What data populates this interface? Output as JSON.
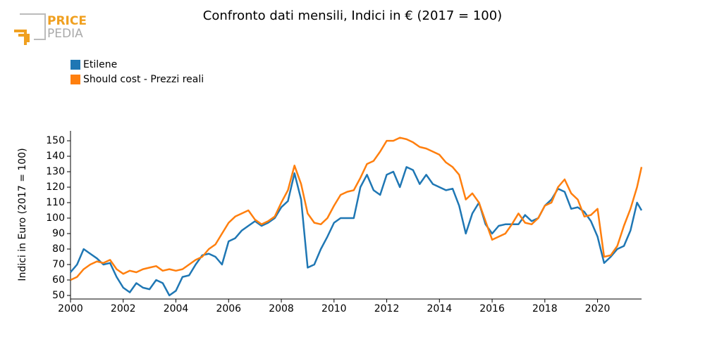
{
  "logo": {
    "line1": "PRICE",
    "line2": "PEDIA"
  },
  "chart_data": {
    "type": "line",
    "title": "Confronto dati mensili, Indici in € (2017 = 100)",
    "y_label": "Indici in Euro (2017 = 100)",
    "legend": "top-left",
    "grid": false,
    "x": [
      2000,
      2000.25,
      2000.5,
      2000.75,
      2001,
      2001.25,
      2001.5,
      2001.75,
      2002,
      2002.25,
      2002.5,
      2002.75,
      2003,
      2003.25,
      2003.5,
      2003.75,
      2004,
      2004.25,
      2004.5,
      2004.75,
      2005,
      2005.25,
      2005.5,
      2005.75,
      2006,
      2006.25,
      2006.5,
      2006.75,
      2007,
      2007.25,
      2007.5,
      2007.75,
      2008,
      2008.25,
      2008.5,
      2008.75,
      2009,
      2009.25,
      2009.5,
      2009.75,
      2010,
      2010.25,
      2010.5,
      2010.75,
      2011,
      2011.25,
      2011.5,
      2011.75,
      2012,
      2012.25,
      2012.5,
      2012.75,
      2013,
      2013.25,
      2013.5,
      2013.75,
      2014,
      2014.25,
      2014.5,
      2014.75,
      2015,
      2015.25,
      2015.5,
      2015.75,
      2016,
      2016.25,
      2016.5,
      2016.75,
      2017,
      2017.25,
      2017.5,
      2017.75,
      2018,
      2018.25,
      2018.5,
      2018.75,
      2019,
      2019.25,
      2019.5,
      2019.75,
      2020,
      2020.25,
      2020.5,
      2020.75,
      2021,
      2021.25,
      2021.5,
      2021.67
    ],
    "series": [
      {
        "name": "Etilene",
        "color": "#1f77b4",
        "values": [
          65,
          70,
          80,
          77,
          74,
          70,
          71,
          62,
          55,
          52,
          58,
          55,
          54,
          60,
          58,
          50,
          53,
          62,
          63,
          70,
          76,
          77,
          75,
          70,
          85,
          87,
          92,
          95,
          98,
          95,
          97,
          100,
          107,
          111,
          129,
          112,
          68,
          70,
          80,
          88,
          97,
          100,
          100,
          100,
          120,
          128,
          118,
          115,
          128,
          130,
          120,
          133,
          131,
          122,
          128,
          122,
          120,
          118,
          119,
          108,
          90,
          103,
          110,
          96,
          90,
          95,
          96,
          96,
          96,
          102,
          98,
          100,
          108,
          112,
          119,
          117,
          106,
          107,
          104,
          98,
          88,
          71,
          75,
          80,
          82,
          92,
          110,
          105
        ]
      },
      {
        "name": "Should cost - Prezzi reali",
        "color": "#ff7f0e",
        "values": [
          60,
          62,
          67,
          70,
          72,
          71,
          73,
          67,
          64,
          66,
          65,
          67,
          68,
          69,
          66,
          67,
          66,
          67,
          70,
          73,
          75,
          80,
          83,
          90,
          97,
          101,
          103,
          105,
          99,
          96,
          98,
          101,
          110,
          118,
          134,
          122,
          103,
          97,
          96,
          100,
          108,
          115,
          117,
          118,
          126,
          135,
          137,
          143,
          150,
          150,
          152,
          151,
          149,
          146,
          145,
          143,
          141,
          136,
          133,
          128,
          112,
          116,
          110,
          98,
          86,
          88,
          90,
          96,
          103,
          97,
          96,
          100,
          108,
          110,
          120,
          125,
          116,
          112,
          101,
          102,
          106,
          75,
          76,
          82,
          95,
          106,
          120,
          133
        ]
      }
    ],
    "xlim": [
      2000,
      2021.67
    ],
    "xticks": [
      2000,
      2002,
      2004,
      2006,
      2008,
      2010,
      2012,
      2014,
      2016,
      2018,
      2020
    ],
    "ylim": [
      47.7,
      156.4
    ],
    "yticks": [
      50,
      60,
      70,
      80,
      90,
      100,
      110,
      120,
      130,
      140,
      150
    ]
  }
}
